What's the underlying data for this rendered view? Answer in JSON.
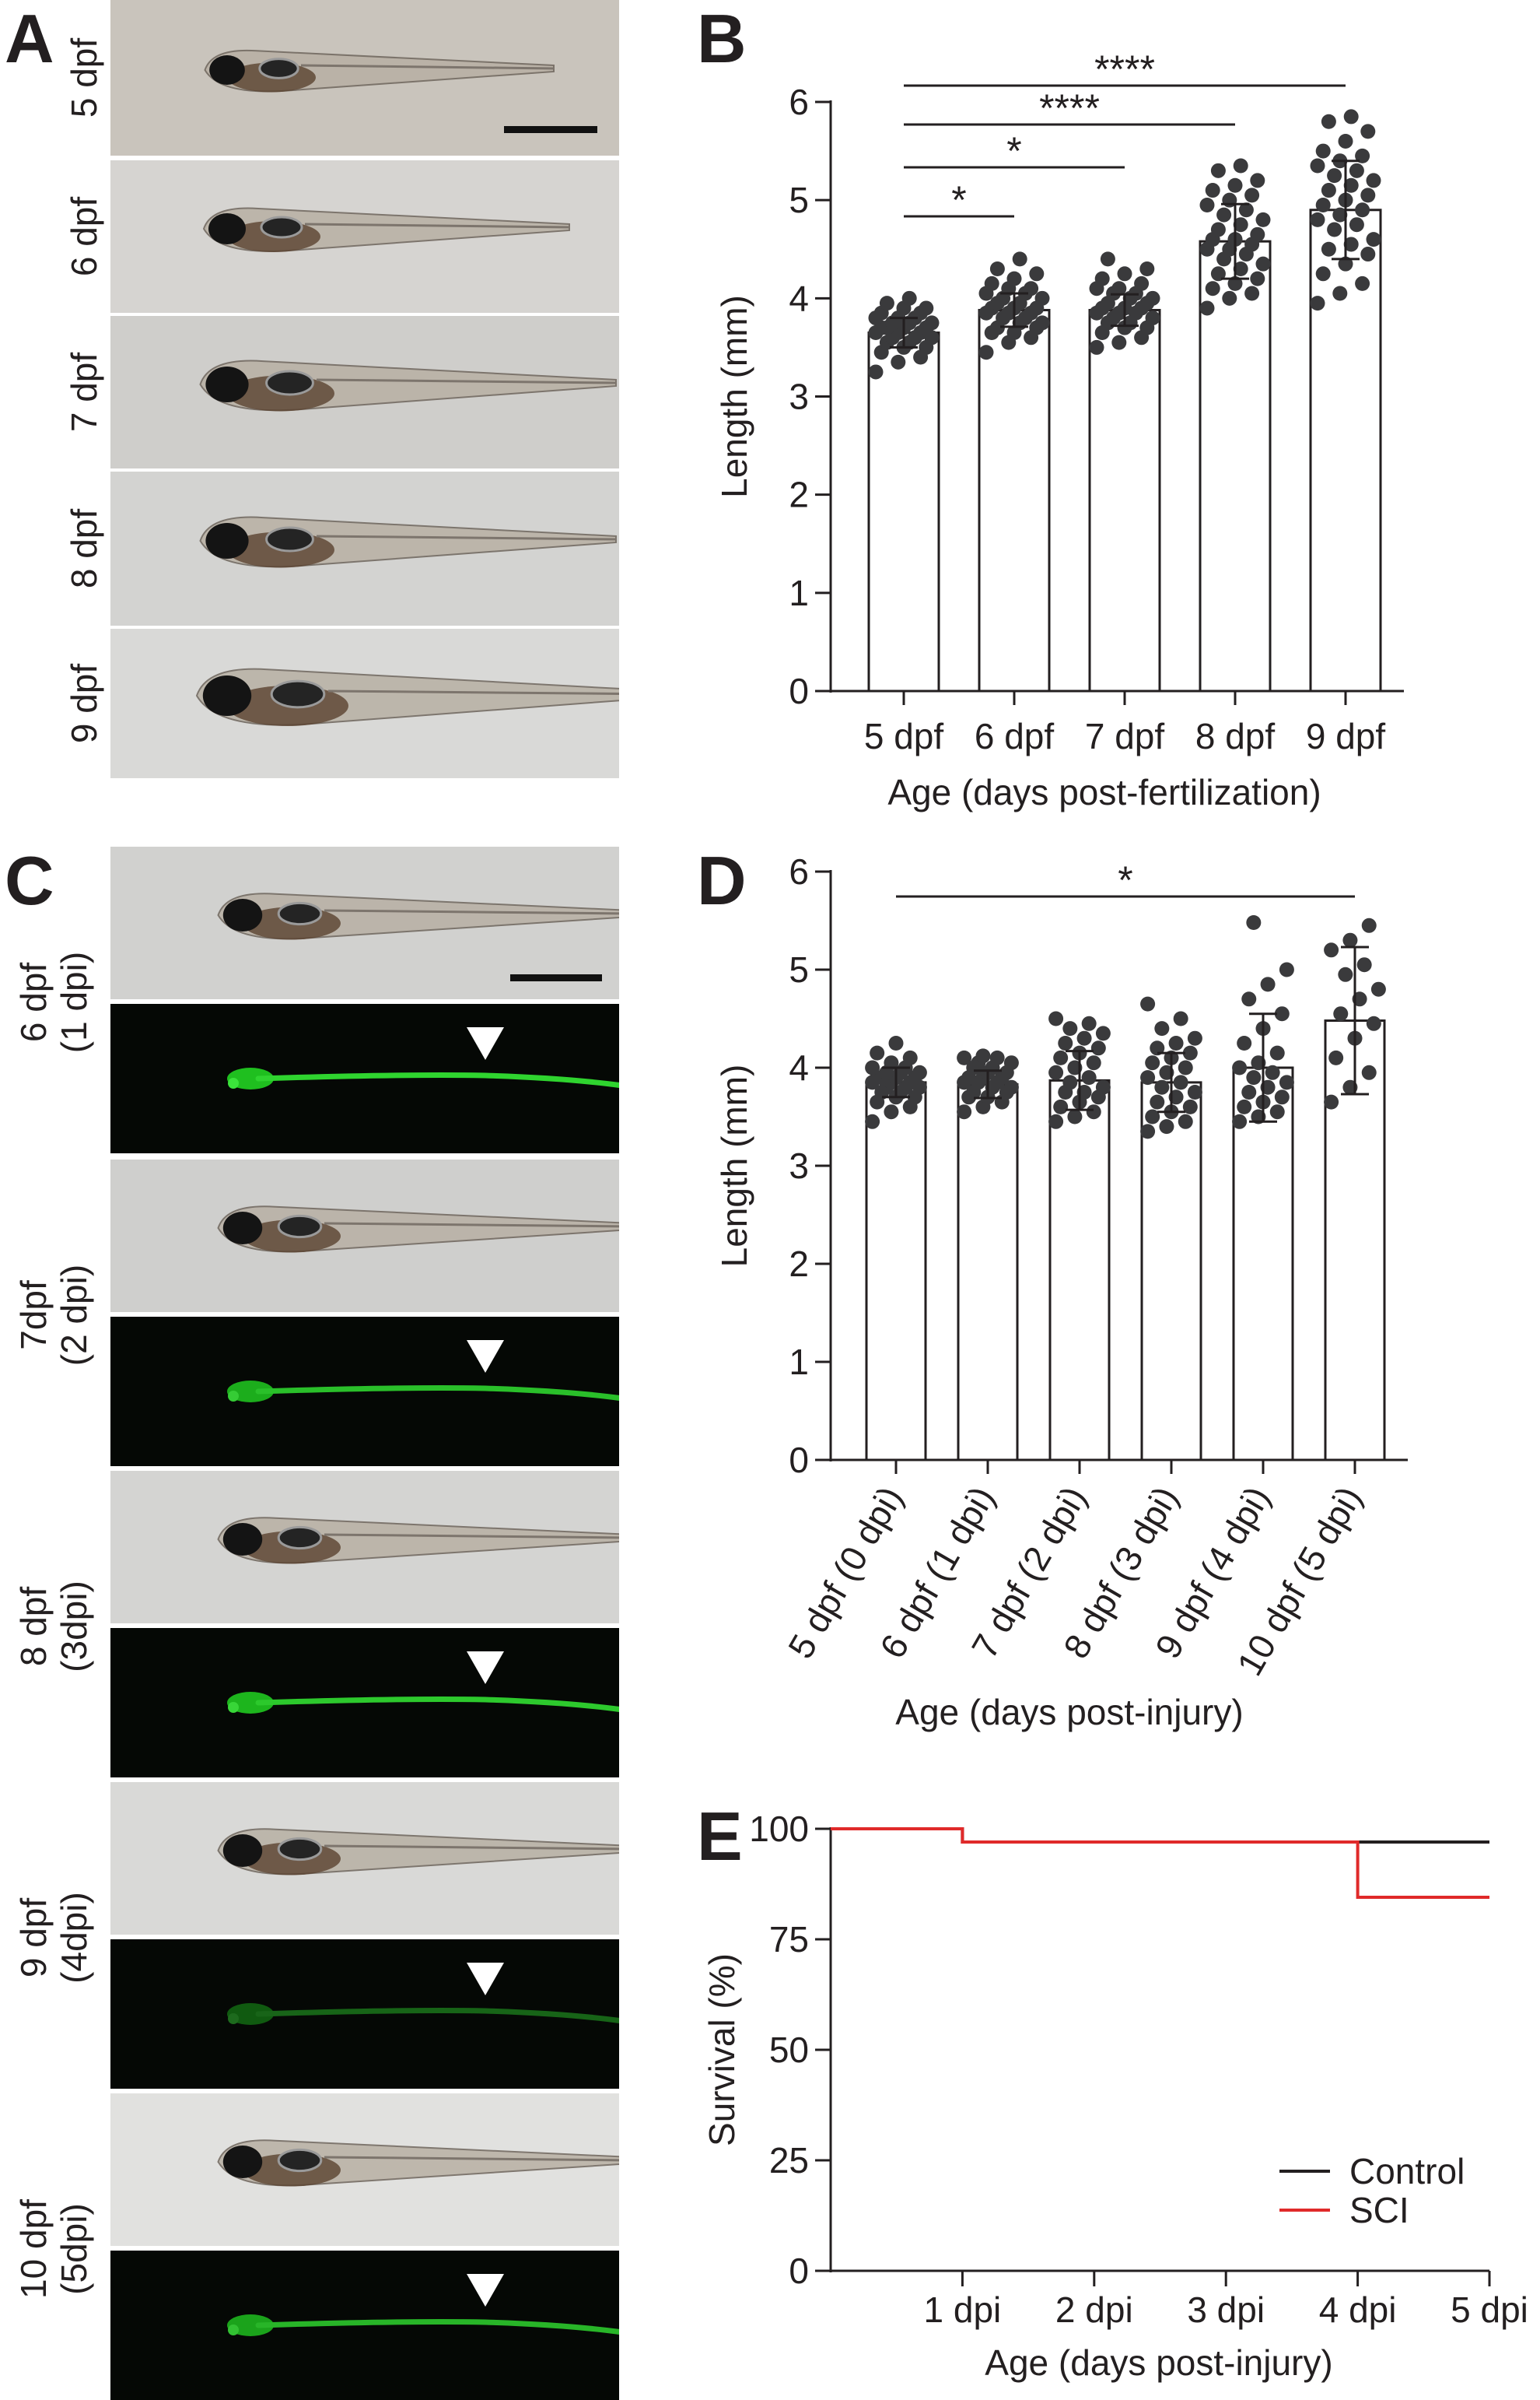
{
  "panels": {
    "A": {
      "letter": "A",
      "photos": [
        {
          "label": "5 dpf",
          "bg": "#c9c4bc"
        },
        {
          "label": "6 dpf",
          "bg": "#d6d4d1"
        },
        {
          "label": "7 dpf",
          "bg": "#cfcecb"
        },
        {
          "label": "8 dpf",
          "bg": "#d3d3d1"
        },
        {
          "label": "9 dpf",
          "bg": "#d9d9d7"
        }
      ]
    },
    "C": {
      "letter": "C",
      "photos": [
        {
          "label": "6 dpf\n(1 dpi)",
          "bright_bg": "#d1d1cf",
          "glow": 1.0
        },
        {
          "label": "7dpf\n(2 dpi)",
          "bright_bg": "#cfcfcd",
          "glow": 0.9
        },
        {
          "label": "8 dpf\n(3dpi)",
          "bright_bg": "#d4d4d2",
          "glow": 0.95
        },
        {
          "label": "9 dpf\n(4dpi)",
          "bright_bg": "#d9d9d7",
          "glow": 0.45
        },
        {
          "label": "10 dpf\n(5dpi)",
          "bright_bg": "#e1e1df",
          "glow": 0.85
        }
      ]
    }
  },
  "chart_data": [
    {
      "panel": "B",
      "type": "bar",
      "xlabel": "Age (days post-fertilization)",
      "ylabel": "Length (mm)",
      "ylim": [
        0,
        6
      ],
      "yticks": [
        0,
        1,
        2,
        3,
        4,
        5,
        6
      ],
      "categories": [
        "5 dpf",
        "6 dpf",
        "7 dpf",
        "8 dpf",
        "9 dpf"
      ],
      "values": [
        3.65,
        3.88,
        3.88,
        4.58,
        4.9
      ],
      "sd": [
        0.15,
        0.17,
        0.16,
        0.38,
        0.5
      ],
      "points": [
        [
          3.25,
          3.35,
          3.4,
          3.45,
          3.5,
          3.5,
          3.55,
          3.55,
          3.6,
          3.6,
          3.6,
          3.65,
          3.65,
          3.65,
          3.7,
          3.7,
          3.7,
          3.7,
          3.75,
          3.75,
          3.75,
          3.8,
          3.8,
          3.8,
          3.85,
          3.85,
          3.9,
          3.9,
          3.95,
          4.0
        ],
        [
          3.45,
          3.55,
          3.6,
          3.65,
          3.65,
          3.7,
          3.7,
          3.75,
          3.75,
          3.8,
          3.8,
          3.85,
          3.85,
          3.85,
          3.9,
          3.9,
          3.9,
          3.95,
          3.95,
          4.0,
          4.0,
          4.05,
          4.05,
          4.1,
          4.1,
          4.15,
          4.2,
          4.25,
          4.3,
          4.4
        ],
        [
          3.5,
          3.55,
          3.6,
          3.65,
          3.7,
          3.7,
          3.75,
          3.75,
          3.8,
          3.8,
          3.85,
          3.85,
          3.85,
          3.9,
          3.9,
          3.9,
          3.95,
          3.95,
          4.0,
          4.0,
          4.05,
          4.05,
          4.1,
          4.1,
          4.15,
          4.2,
          4.25,
          4.3,
          4.4
        ],
        [
          3.9,
          4.0,
          4.05,
          4.1,
          4.15,
          4.2,
          4.25,
          4.3,
          4.35,
          4.4,
          4.45,
          4.5,
          4.5,
          4.55,
          4.6,
          4.6,
          4.65,
          4.7,
          4.75,
          4.8,
          4.85,
          4.9,
          4.95,
          5.0,
          5.05,
          5.1,
          5.15,
          5.2,
          5.3,
          5.35
        ],
        [
          3.95,
          4.05,
          4.15,
          4.25,
          4.35,
          4.45,
          4.5,
          4.55,
          4.6,
          4.7,
          4.75,
          4.8,
          4.85,
          4.9,
          4.95,
          5.0,
          5.05,
          5.1,
          5.15,
          5.2,
          5.25,
          5.3,
          5.35,
          5.4,
          5.45,
          5.5,
          5.6,
          5.7,
          5.8,
          5.85
        ]
      ],
      "significance": [
        {
          "from": 0,
          "to": 4,
          "label": "****"
        },
        {
          "from": 0,
          "to": 3,
          "label": "****"
        },
        {
          "from": 0,
          "to": 2,
          "label": "*"
        },
        {
          "from": 0,
          "to": 1,
          "label": "*"
        }
      ]
    },
    {
      "panel": "D",
      "type": "bar",
      "xlabel": "Age (days post-injury)",
      "ylabel": "Length (mm)",
      "ylim": [
        0,
        6
      ],
      "yticks": [
        0,
        1,
        2,
        3,
        4,
        5,
        6
      ],
      "categories": [
        "5 dpf (0 dpi)",
        "6 dpf (1 dpi)",
        "7 dpf (2 dpi)",
        "8 dpf (3 dpi)",
        "9 dpf (4 dpi)",
        "10 dpf (5 dpi)"
      ],
      "values": [
        3.85,
        3.83,
        3.87,
        3.85,
        4.0,
        4.48
      ],
      "sd": [
        0.15,
        0.14,
        0.3,
        0.3,
        0.55,
        0.75
      ],
      "points": [
        [
          3.45,
          3.55,
          3.6,
          3.65,
          3.7,
          3.7,
          3.75,
          3.75,
          3.8,
          3.8,
          3.8,
          3.85,
          3.85,
          3.85,
          3.9,
          3.9,
          3.9,
          3.9,
          3.95,
          3.95,
          3.95,
          4.0,
          4.0,
          4.05,
          4.1,
          4.15,
          4.25
        ],
        [
          3.55,
          3.6,
          3.65,
          3.7,
          3.7,
          3.75,
          3.75,
          3.8,
          3.8,
          3.85,
          3.85,
          3.85,
          3.9,
          3.9,
          3.9,
          3.95,
          3.95,
          4.0,
          4.0,
          4.05,
          4.05,
          4.1,
          4.1,
          4.12
        ],
        [
          3.45,
          3.5,
          3.55,
          3.6,
          3.65,
          3.7,
          3.75,
          3.75,
          3.8,
          3.85,
          3.9,
          3.95,
          4.0,
          4.05,
          4.1,
          4.15,
          4.2,
          4.25,
          4.3,
          4.35,
          4.4,
          4.45,
          4.5
        ],
        [
          3.35,
          3.4,
          3.45,
          3.5,
          3.55,
          3.6,
          3.65,
          3.7,
          3.75,
          3.8,
          3.85,
          3.9,
          3.95,
          4.0,
          4.05,
          4.1,
          4.15,
          4.2,
          4.25,
          4.3,
          4.4,
          4.5,
          4.65
        ],
        [
          3.45,
          3.5,
          3.55,
          3.6,
          3.65,
          3.7,
          3.75,
          3.8,
          3.85,
          3.9,
          3.95,
          4.0,
          4.05,
          4.15,
          4.25,
          4.4,
          4.55,
          4.7,
          4.85,
          5.0,
          5.48
        ],
        [
          3.65,
          3.8,
          3.95,
          4.1,
          4.3,
          4.45,
          4.55,
          4.7,
          4.8,
          4.95,
          5.05,
          5.2,
          5.3,
          5.45
        ]
      ],
      "significance": [
        {
          "from": 0,
          "to": 5,
          "label": "*"
        }
      ]
    },
    {
      "panel": "E",
      "type": "line",
      "xlabel": "Age (days post-injury)",
      "ylabel": "Survival (%)",
      "ylim": [
        0,
        100
      ],
      "xlim": [
        0,
        5
      ],
      "yticks": [
        0,
        25,
        50,
        75,
        100
      ],
      "xtick_labels": [
        "1 dpi",
        "2 dpi",
        "3 dpi",
        "4 dpi",
        "5 dpi"
      ],
      "xtick_values": [
        1,
        2,
        3,
        4,
        5
      ],
      "legend_position": "bottom-right",
      "series": [
        {
          "name": "Control",
          "color": "#231f20",
          "x": [
            0,
            1,
            1,
            4,
            4,
            5
          ],
          "y": [
            100,
            100,
            97,
            97,
            97,
            97
          ]
        },
        {
          "name": "SCI",
          "color": "#e02a2a",
          "x": [
            0,
            1,
            1,
            4,
            4,
            5
          ],
          "y": [
            100,
            100,
            97,
            97,
            84.5,
            84.5
          ]
        }
      ]
    }
  ]
}
